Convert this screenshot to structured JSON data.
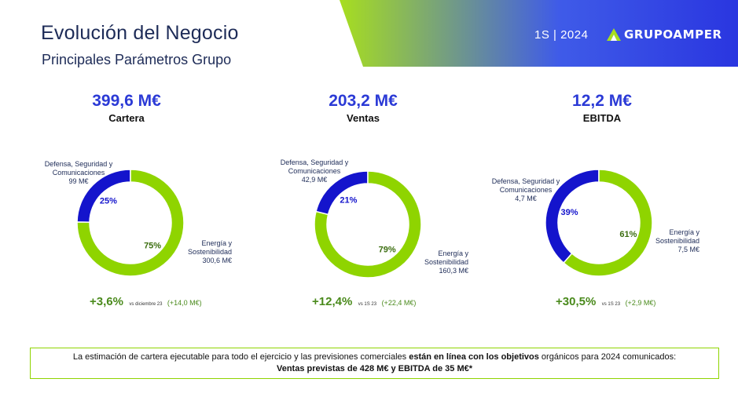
{
  "header": {
    "title": "Evolución del Negocio",
    "subtitle": "Principales Parámetros Grupo",
    "period": "1S | 2024",
    "logo_text": "GRUPOAMPER",
    "gradient_colors": [
      "#a7de1f",
      "#3f5be8",
      "#2a36e0"
    ]
  },
  "colors": {
    "green": "#8fd400",
    "blue": "#1414cc",
    "kpi_blue": "#2b3ad6",
    "growth_green": "#4a8a1c"
  },
  "kpis": [
    {
      "value": "399,6 M€",
      "label": "Cartera",
      "growth": "+3,6%",
      "growth_ref": "vs diciembre 23",
      "growth_delta": "(+14,0 M€)"
    },
    {
      "value": "203,2 M€",
      "label": "Ventas",
      "growth": "+12,4%",
      "growth_ref": "vs 1S 23",
      "growth_delta": "(+22,4 M€)"
    },
    {
      "value": "12,2 M€",
      "label": "EBITDA",
      "growth": "+30,5%",
      "growth_ref": "vs 1S 23",
      "growth_delta": "(+2,9 M€)"
    }
  ],
  "chart_data": [
    {
      "type": "pie",
      "title": "Cartera",
      "donut": true,
      "categories": [
        "Defensa, Seguridad y Comunicaciones",
        "Energía y Sostenibilidad"
      ],
      "values": [
        99,
        300.6
      ],
      "value_labels": [
        "99 M€",
        "300,6 M€"
      ],
      "percent_labels": [
        "25%",
        "75%"
      ],
      "colors": [
        "#1414cc",
        "#8fd400"
      ]
    },
    {
      "type": "pie",
      "title": "Ventas",
      "donut": true,
      "categories": [
        "Defensa, Seguridad y Comunicaciones",
        "Energía y Sostenibilidad"
      ],
      "values": [
        42.9,
        160.3
      ],
      "value_labels": [
        "42,9 M€",
        "160,3 M€"
      ],
      "percent_labels": [
        "21%",
        "79%"
      ],
      "colors": [
        "#1414cc",
        "#8fd400"
      ]
    },
    {
      "type": "pie",
      "title": "EBITDA",
      "donut": true,
      "categories": [
        "Defensa, Seguridad y Comunicaciones",
        "Energía y Sostenibilidad"
      ],
      "values": [
        4.7,
        7.5
      ],
      "value_labels": [
        "4,7 M€",
        "7,5 M€"
      ],
      "percent_labels": [
        "39%",
        "61%"
      ],
      "colors": [
        "#1414cc",
        "#8fd400"
      ]
    }
  ],
  "labels": {
    "defense_l1": "Defensa, Seguridad y",
    "defense_l2": "Comunicaciones",
    "energy_l1": "Energía y",
    "energy_l2": "Sostenibilidad"
  },
  "note": {
    "text_1": "La estimación de cartera ejecutable para todo el ejercicio y las previsiones comerciales ",
    "text_bold": "están en línea con los objetivos",
    "text_2": " orgánicos para 2024 comunicados:",
    "line_2": "Ventas previstas de 428 M€ y EBITDA de 35 M€*"
  }
}
